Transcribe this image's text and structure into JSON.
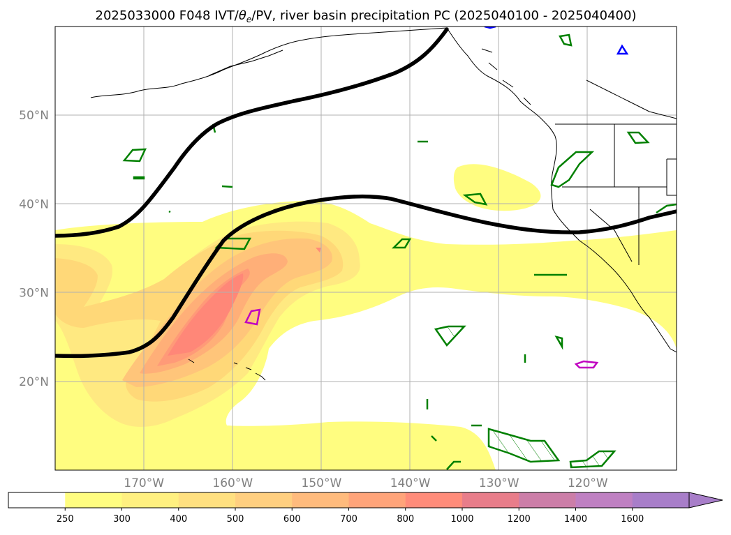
{
  "title": "2025033000 F048 IVT/θe/PV, river basin precipitation PC (2025040100 - 2025040400)",
  "title_parts": {
    "prefix": "2025033000 F048 IVT/",
    "theta": "θ",
    "sub": "e",
    "suffix": "/PV, river basin precipitation PC (2025040100 - 2025040400)"
  },
  "map": {
    "extent": {
      "lon_min": -180,
      "lon_max": -110,
      "lat_min": 10,
      "lat_max": 60
    },
    "lat_ticks": [
      {
        "value": 50,
        "label": "50°N"
      },
      {
        "value": 40,
        "label": "40°N"
      },
      {
        "value": 30,
        "label": "30°N"
      },
      {
        "value": 20,
        "label": "20°N"
      }
    ],
    "lon_ticks": [
      {
        "value": -170,
        "label": "170°W"
      },
      {
        "value": -160,
        "label": "160°W"
      },
      {
        "value": -150,
        "label": "150°W"
      },
      {
        "value": -140,
        "label": "140°W"
      },
      {
        "value": -130,
        "label": "130°W"
      },
      {
        "value": -120,
        "label": "120°W"
      }
    ],
    "gridlines": true,
    "ivt_field_colors": [
      "#fffd80",
      "#ffec78",
      "#ffd478",
      "#ffb978",
      "#ff9c78",
      "#ff8278"
    ]
  },
  "colorbar": {
    "levels": [
      "250",
      "300",
      "400",
      "500",
      "600",
      "700",
      "800",
      "1000",
      "1200",
      "1400",
      "1600"
    ],
    "colors": [
      "#ffffff",
      "#fffd80",
      "#fff080",
      "#ffe080",
      "#ffcf80",
      "#ffbb7d",
      "#ffa47a",
      "#ff8c7a",
      "#e87d8a",
      "#cc7ea8",
      "#bf80c2",
      "#a87ec9"
    ],
    "extend": "max"
  }
}
